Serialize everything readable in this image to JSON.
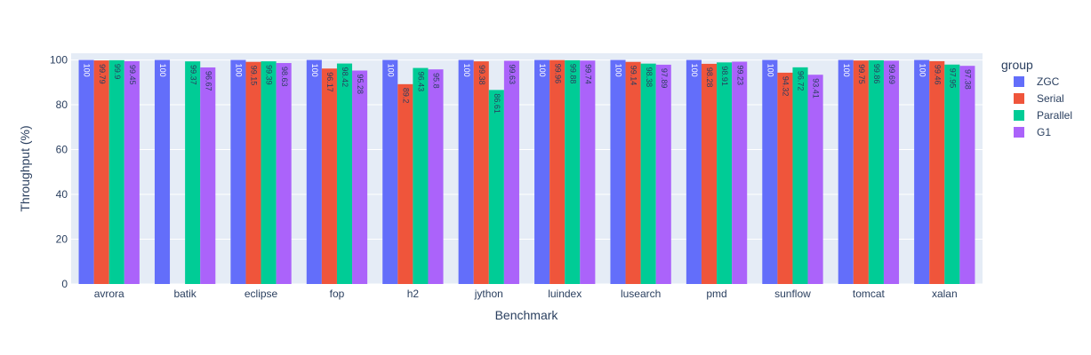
{
  "chart_data": {
    "type": "bar",
    "xlabel": "Benchmark",
    "ylabel": "Throughput (%)",
    "ylim": [
      0,
      103
    ],
    "yticks": [
      0,
      20,
      40,
      60,
      80,
      100
    ],
    "grid": true,
    "legend_title": "group",
    "legend_position": "right",
    "categories": [
      "avrora",
      "batik",
      "eclipse",
      "fop",
      "h2",
      "jython",
      "luindex",
      "lusearch",
      "pmd",
      "sunflow",
      "tomcat",
      "xalan"
    ],
    "series": [
      {
        "name": "ZGC",
        "color": "#636efa",
        "label_color": "#ffffff",
        "values": [
          100,
          100,
          100,
          100,
          100,
          100,
          100,
          100,
          100,
          100,
          100,
          100
        ],
        "labels": [
          "100",
          "100",
          "100",
          "100",
          "100",
          "100",
          "100",
          "100",
          "100",
          "100",
          "100",
          "100"
        ]
      },
      {
        "name": "Serial",
        "color": "#ef553b",
        "label_color": "#2a3f5f",
        "values": [
          99.79,
          null,
          99.15,
          96.17,
          89.2,
          99.38,
          99.96,
          99.14,
          98.28,
          94.32,
          99.75,
          99.46
        ],
        "labels": [
          "99.79",
          "",
          "99.15",
          "96.17",
          "89.2",
          "99.38",
          "99.96",
          "99.14",
          "98.28",
          "94.32",
          "99.75",
          "99.46"
        ]
      },
      {
        "name": "Parallel",
        "color": "#00cc96",
        "label_color": "#2a3f5f",
        "values": [
          99.9,
          99.37,
          99.39,
          98.42,
          96.43,
          86.61,
          99.88,
          98.38,
          98.91,
          96.72,
          99.86,
          97.95
        ],
        "labels": [
          "99.9",
          "99.37",
          "99.39",
          "98.42",
          "96.43",
          "86.61",
          "99.88",
          "98.38",
          "98.91",
          "96.72",
          "99.86",
          "97.95"
        ]
      },
      {
        "name": "G1",
        "color": "#ab63fa",
        "label_color": "#2a3f5f",
        "values": [
          99.45,
          96.67,
          98.63,
          95.28,
          95.8,
          99.63,
          99.74,
          97.89,
          99.23,
          93.41,
          99.69,
          97.38
        ],
        "labels": [
          "99.45",
          "96.67",
          "98.63",
          "95.28",
          "95.8",
          "99.63",
          "99.74",
          "97.89",
          "99.23",
          "93.41",
          "99.69",
          "97.38"
        ]
      }
    ]
  }
}
